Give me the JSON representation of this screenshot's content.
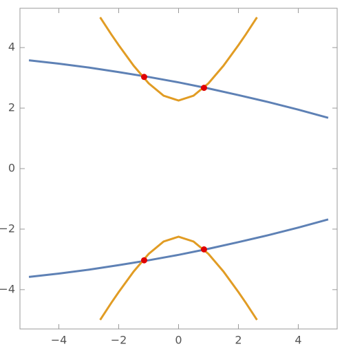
{
  "chart_data": {
    "type": "line",
    "xlim": [
      -5.3,
      5.3
    ],
    "ylim": [
      -5.3,
      5.3
    ],
    "xticks": [
      {
        "value": -4,
        "label": "−4"
      },
      {
        "value": -2,
        "label": "−2"
      },
      0,
      2,
      4
    ],
    "yticks": [
      {
        "value": -4,
        "label": "−4"
      },
      {
        "value": -2,
        "label": "−2"
      },
      0,
      2,
      4
    ],
    "series": [
      {
        "style": "line",
        "color": "#5e81b5",
        "x": [
          -5,
          -4,
          -3,
          -2,
          -1,
          0,
          1,
          2,
          3,
          4,
          5
        ],
        "values": [
          3.58,
          3.47,
          3.34,
          3.19,
          3.03,
          2.85,
          2.65,
          2.43,
          2.2,
          1.95,
          1.68
        ]
      },
      {
        "style": "line",
        "color": "#5e81b5",
        "x": [
          -5,
          -4,
          -3,
          -2,
          -1,
          0,
          1,
          2,
          3,
          4,
          5
        ],
        "values": [
          -3.58,
          -3.47,
          -3.34,
          -3.19,
          -3.03,
          -2.85,
          -2.65,
          -2.43,
          -2.2,
          -1.95,
          -1.68
        ]
      },
      {
        "style": "line",
        "color": "#e19c24",
        "x": [
          -2.62,
          -2.25,
          -2,
          -1.5,
          -1,
          -0.5,
          0,
          0.5,
          1,
          1.5,
          2,
          2.25,
          2.62
        ],
        "values": [
          5.0,
          4.44,
          4.08,
          3.4,
          2.82,
          2.41,
          2.25,
          2.41,
          2.82,
          3.4,
          4.08,
          4.44,
          5.0
        ]
      },
      {
        "style": "line",
        "color": "#e19c24",
        "x": [
          -2.62,
          -2.25,
          -2,
          -1.5,
          -1,
          -0.5,
          0,
          0.5,
          1,
          1.5,
          2,
          2.25,
          2.62
        ],
        "values": [
          -5.0,
          -4.44,
          -4.08,
          -3.4,
          -2.82,
          -2.41,
          -2.25,
          -2.41,
          -2.82,
          -3.4,
          -4.08,
          -4.44,
          -5.0
        ]
      },
      {
        "style": "marker",
        "color": "#e00000",
        "x": [
          -1.15,
          0.85,
          -1.15,
          0.85
        ],
        "values": [
          3.03,
          2.67,
          -3.03,
          -2.67
        ]
      }
    ]
  }
}
